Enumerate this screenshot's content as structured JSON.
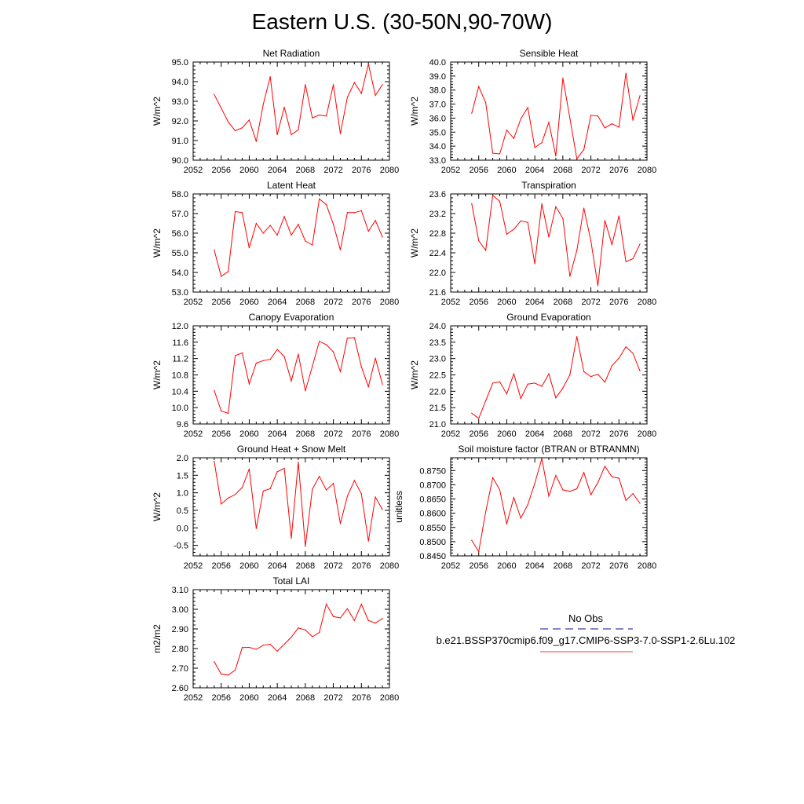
{
  "figure_title": "Eastern U.S. (30-50N,90-70W)",
  "legend": {
    "entries": [
      {
        "label": "No Obs",
        "color": "#3b3bb0",
        "dash": "dashed"
      },
      {
        "label": "b.e21.BSSP370cmip6.f09_g17.CMIP6-SSP3-7.0-SSP1-2.6Lu.102",
        "color": "#ff3030",
        "dash": "solid"
      }
    ]
  },
  "chart_data": [
    {
      "type": "line",
      "title": "Net Radiation",
      "ylabel": "W/m^2",
      "xlim": [
        2052,
        2080
      ],
      "ylim": [
        90.0,
        95.0
      ],
      "xticks": [
        "2052",
        "2056",
        "2060",
        "2064",
        "2068",
        "2072",
        "2076",
        "2080"
      ],
      "yticks": [
        "90.0",
        "91.0",
        "92.0",
        "93.0",
        "94.0",
        "95.0"
      ],
      "series_color": "#ff0000",
      "x": [
        2055,
        2056,
        2057,
        2058,
        2059,
        2060,
        2061,
        2062,
        2063,
        2064,
        2065,
        2066,
        2067,
        2068,
        2069,
        2070,
        2071,
        2072,
        2073,
        2074,
        2075,
        2076,
        2077,
        2078,
        2079
      ],
      "values": [
        93.35,
        92.65,
        91.95,
        91.5,
        91.65,
        92.05,
        90.95,
        92.85,
        94.25,
        91.3,
        92.7,
        91.3,
        91.55,
        93.85,
        92.15,
        92.3,
        92.25,
        93.85,
        91.35,
        93.2,
        93.95,
        93.4,
        94.9,
        93.3,
        93.85
      ]
    },
    {
      "type": "line",
      "title": "Sensible Heat",
      "ylabel": "W/m^2",
      "xlim": [
        2052,
        2080
      ],
      "ylim": [
        33.0,
        40.0
      ],
      "xticks": [
        "2052",
        "2056",
        "2060",
        "2064",
        "2068",
        "2072",
        "2076",
        "2080"
      ],
      "yticks": [
        "33.0",
        "34.0",
        "35.0",
        "36.0",
        "37.0",
        "38.0",
        "39.0",
        "40.0"
      ],
      "series_color": "#ff0000",
      "x": [
        2055,
        2056,
        2057,
        2058,
        2059,
        2060,
        2061,
        2062,
        2063,
        2064,
        2065,
        2066,
        2067,
        2068,
        2069,
        2070,
        2071,
        2072,
        2073,
        2074,
        2075,
        2076,
        2077,
        2078,
        2079
      ],
      "values": [
        36.35,
        38.25,
        37.1,
        33.5,
        33.45,
        35.15,
        34.55,
        35.95,
        36.75,
        33.9,
        34.25,
        35.7,
        33.3,
        38.85,
        36.0,
        33.1,
        33.75,
        36.2,
        36.15,
        35.3,
        35.6,
        35.35,
        39.2,
        35.85,
        37.6
      ]
    },
    {
      "type": "line",
      "title": "Latent Heat",
      "ylabel": "W/m^2",
      "xlim": [
        2052,
        2080
      ],
      "ylim": [
        53.0,
        58.0
      ],
      "xticks": [
        "2052",
        "2056",
        "2060",
        "2064",
        "2068",
        "2072",
        "2076",
        "2080"
      ],
      "yticks": [
        "53.0",
        "54.0",
        "55.0",
        "56.0",
        "57.0",
        "58.0"
      ],
      "series_color": "#ff0000",
      "x": [
        2055,
        2056,
        2057,
        2058,
        2059,
        2060,
        2061,
        2062,
        2063,
        2064,
        2065,
        2066,
        2067,
        2068,
        2069,
        2070,
        2071,
        2072,
        2073,
        2074,
        2075,
        2076,
        2077,
        2078,
        2079
      ],
      "values": [
        55.15,
        53.8,
        54.05,
        57.1,
        57.05,
        55.25,
        56.5,
        56.0,
        56.4,
        55.9,
        56.85,
        55.9,
        56.45,
        55.6,
        55.4,
        57.75,
        57.45,
        56.45,
        55.15,
        57.05,
        57.05,
        57.15,
        56.1,
        56.65,
        55.8
      ]
    },
    {
      "type": "line",
      "title": "Transpiration",
      "ylabel": "W/m^2",
      "xlim": [
        2052,
        2080
      ],
      "ylim": [
        21.6,
        23.6
      ],
      "xticks": [
        "2052",
        "2056",
        "2060",
        "2064",
        "2068",
        "2072",
        "2076",
        "2080"
      ],
      "yticks": [
        "21.6",
        "22.0",
        "22.4",
        "22.8",
        "23.2",
        "23.6"
      ],
      "series_color": "#ff0000",
      "x": [
        2055,
        2056,
        2057,
        2058,
        2059,
        2060,
        2061,
        2062,
        2063,
        2064,
        2065,
        2066,
        2067,
        2068,
        2069,
        2070,
        2071,
        2072,
        2073,
        2074,
        2075,
        2076,
        2077,
        2078,
        2079
      ],
      "values": [
        23.4,
        22.65,
        22.45,
        23.57,
        23.45,
        22.78,
        22.88,
        23.05,
        23.02,
        22.18,
        23.4,
        22.72,
        23.34,
        23.1,
        21.92,
        22.45,
        23.31,
        22.64,
        21.73,
        23.06,
        22.57,
        23.15,
        22.22,
        22.28,
        22.58
      ]
    },
    {
      "type": "line",
      "title": "Canopy Evaporation",
      "ylabel": "W/m^2",
      "xlim": [
        2052,
        2080
      ],
      "ylim": [
        9.6,
        12.0
      ],
      "xticks": [
        "2052",
        "2056",
        "2060",
        "2064",
        "2068",
        "2072",
        "2076",
        "2080"
      ],
      "yticks": [
        "9.6",
        "10.0",
        "10.4",
        "10.8",
        "11.2",
        "11.6",
        "12.0"
      ],
      "series_color": "#ff0000",
      "x": [
        2055,
        2056,
        2057,
        2058,
        2059,
        2060,
        2061,
        2062,
        2063,
        2064,
        2065,
        2066,
        2067,
        2068,
        2069,
        2070,
        2071,
        2072,
        2073,
        2074,
        2075,
        2076,
        2077,
        2078,
        2079
      ],
      "values": [
        10.42,
        9.92,
        9.86,
        11.27,
        11.34,
        10.58,
        11.09,
        11.15,
        11.18,
        11.42,
        11.25,
        10.65,
        11.31,
        10.41,
        11.01,
        11.62,
        11.54,
        11.36,
        10.88,
        11.7,
        11.71,
        11.0,
        10.51,
        11.21,
        10.57
      ]
    },
    {
      "type": "line",
      "title": "Ground Evaporation",
      "ylabel": "W/m^2",
      "xlim": [
        2052,
        2080
      ],
      "ylim": [
        21.0,
        24.0
      ],
      "xticks": [
        "2052",
        "2056",
        "2060",
        "2064",
        "2068",
        "2072",
        "2076",
        "2080"
      ],
      "yticks": [
        "21.0",
        "21.5",
        "22.0",
        "22.5",
        "23.0",
        "23.5",
        "24.0"
      ],
      "series_color": "#ff0000",
      "x": [
        2055,
        2056,
        2057,
        2058,
        2059,
        2060,
        2061,
        2062,
        2063,
        2064,
        2065,
        2066,
        2067,
        2068,
        2069,
        2070,
        2071,
        2072,
        2073,
        2074,
        2075,
        2076,
        2077,
        2078,
        2079
      ],
      "values": [
        21.33,
        21.17,
        21.71,
        22.25,
        22.29,
        21.92,
        22.53,
        21.78,
        22.22,
        22.25,
        22.15,
        22.53,
        21.8,
        22.1,
        22.5,
        23.67,
        22.6,
        22.45,
        22.52,
        22.28,
        22.78,
        23.01,
        23.36,
        23.16,
        22.62
      ]
    },
    {
      "type": "line",
      "title": "Ground Heat + Snow Melt",
      "ylabel": "W/m^2",
      "xlim": [
        2052,
        2080
      ],
      "ylim": [
        -0.8,
        2.0
      ],
      "xticks": [
        "2052",
        "2056",
        "2060",
        "2064",
        "2068",
        "2072",
        "2076",
        "2080"
      ],
      "yticks": [
        "-0.5",
        "0.0",
        "0.5",
        "1.0",
        "1.5",
        "2.0"
      ],
      "series_color": "#ff0000",
      "x": [
        2055,
        2056,
        2057,
        2058,
        2059,
        2060,
        2061,
        2062,
        2063,
        2064,
        2065,
        2066,
        2067,
        2068,
        2069,
        2070,
        2071,
        2072,
        2073,
        2074,
        2075,
        2076,
        2077,
        2078,
        2079
      ],
      "values": [
        1.9,
        0.68,
        0.85,
        0.95,
        1.15,
        1.68,
        -0.02,
        1.05,
        1.12,
        1.6,
        1.7,
        -0.3,
        1.88,
        -0.53,
        1.1,
        1.47,
        1.08,
        1.27,
        0.12,
        0.9,
        1.35,
        0.97,
        -0.38,
        0.88,
        0.52
      ]
    },
    {
      "type": "line",
      "title": "Soil moisture factor (BTRAN or BTRANMN)",
      "ylabel": "unitless",
      "xlim": [
        2052,
        2080
      ],
      "ylim": [
        0.845,
        0.8795
      ],
      "xticks": [
        "2052",
        "2056",
        "2060",
        "2064",
        "2068",
        "2072",
        "2076",
        "2080"
      ],
      "yticks": [
        "0.8450",
        "0.8500",
        "0.8550",
        "0.8600",
        "0.8650",
        "0.8700",
        "0.8750"
      ],
      "series_color": "#ff0000",
      "x": [
        2055,
        2056,
        2057,
        2058,
        2059,
        2060,
        2061,
        2062,
        2063,
        2064,
        2065,
        2066,
        2067,
        2068,
        2069,
        2070,
        2071,
        2072,
        2073,
        2074,
        2075,
        2076,
        2077,
        2078,
        2079
      ],
      "values": [
        0.8505,
        0.8465,
        0.8605,
        0.8725,
        0.8682,
        0.8562,
        0.8655,
        0.8583,
        0.863,
        0.8705,
        0.8792,
        0.866,
        0.8733,
        0.8682,
        0.8677,
        0.8686,
        0.8743,
        0.8665,
        0.8708,
        0.8765,
        0.8728,
        0.8723,
        0.8645,
        0.8669,
        0.8635
      ]
    },
    {
      "type": "line",
      "title": "Total LAI",
      "ylabel": "m2/m2",
      "xlim": [
        2052,
        2080
      ],
      "ylim": [
        2.6,
        3.1
      ],
      "xticks": [
        "2052",
        "2056",
        "2060",
        "2064",
        "2068",
        "2072",
        "2076",
        "2080"
      ],
      "yticks": [
        "2.60",
        "2.70",
        "2.80",
        "2.90",
        "3.00",
        "3.10"
      ],
      "series_color": "#ff0000",
      "x": [
        2055,
        2056,
        2057,
        2058,
        2059,
        2060,
        2061,
        2062,
        2063,
        2064,
        2065,
        2066,
        2067,
        2068,
        2069,
        2070,
        2071,
        2072,
        2073,
        2074,
        2075,
        2076,
        2077,
        2078,
        2079
      ],
      "values": [
        2.733,
        2.67,
        2.665,
        2.69,
        2.805,
        2.806,
        2.796,
        2.817,
        2.822,
        2.787,
        2.822,
        2.858,
        2.905,
        2.895,
        2.86,
        2.882,
        3.027,
        2.963,
        2.956,
        3.003,
        2.943,
        3.026,
        2.943,
        2.93,
        2.953
      ]
    }
  ]
}
